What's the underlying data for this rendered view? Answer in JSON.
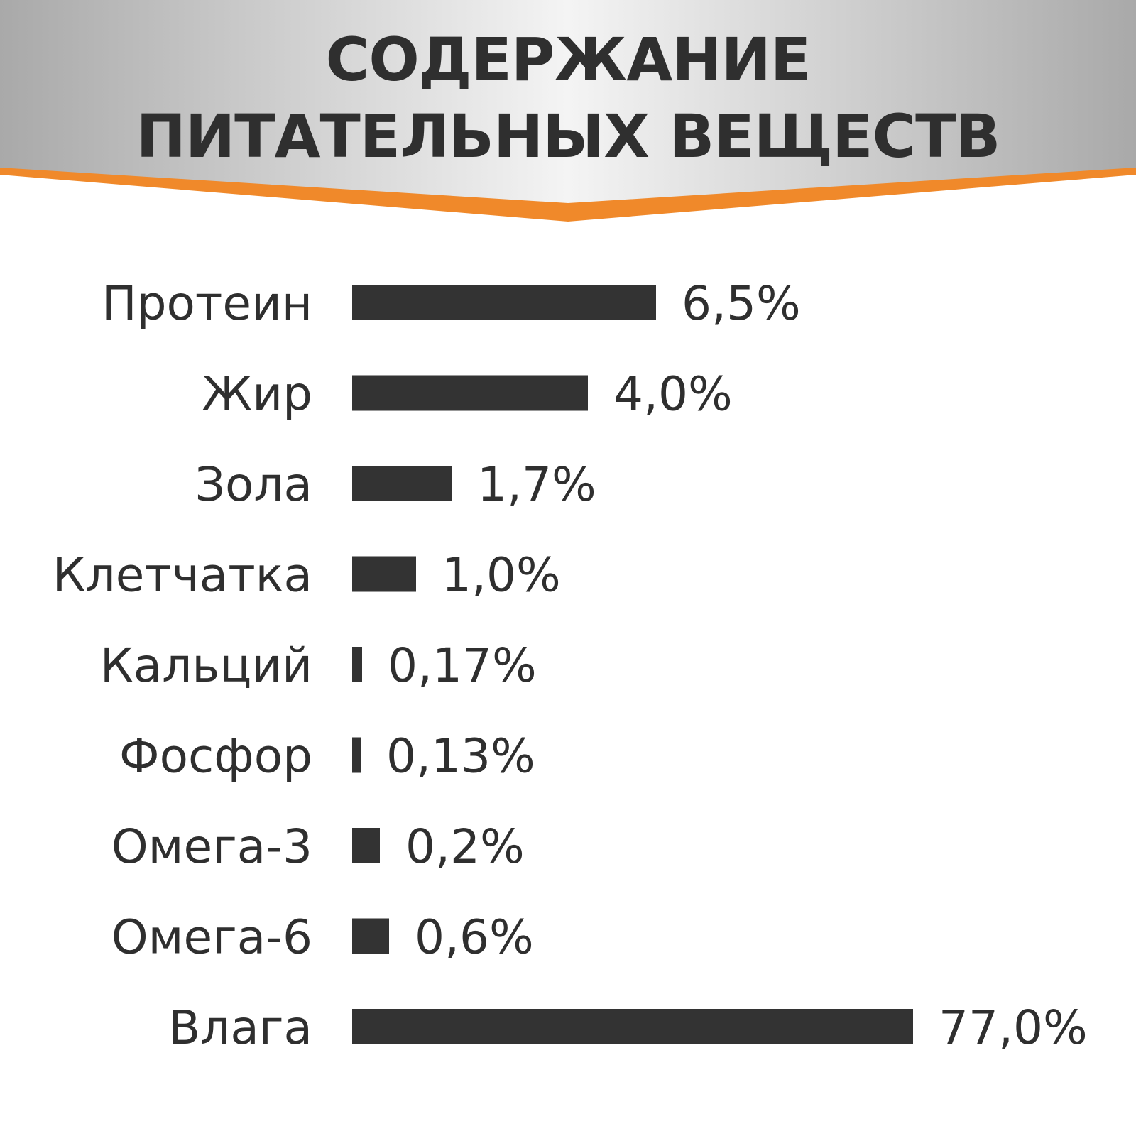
{
  "header": {
    "title_line_1": "СОДЕРЖАНИЕ",
    "title_line_2": "ПИТАТЕЛЬНЫХ ВЕЩЕСТВ"
  },
  "colors": {
    "bar": "#333333",
    "text": "#2f2f2f",
    "accent": "#f0892a",
    "header_light": "#f4f4f4",
    "header_dark": "#a9a9a9"
  },
  "chart_data": {
    "type": "bar",
    "orientation": "horizontal",
    "title": "СОДЕРЖАНИЕ ПИТАТЕЛЬНЫХ ВЕЩЕСТВ",
    "xlabel": "",
    "ylabel": "",
    "grid": false,
    "categories": [
      "Протеин",
      "Жир",
      "Зола",
      "Клетчатка",
      "Кальций",
      "Фосфор",
      "Омега-3",
      "Омега-6",
      "Влага"
    ],
    "values": [
      6.5,
      4.0,
      1.7,
      1.0,
      0.17,
      0.13,
      0.2,
      0.6,
      77.0
    ],
    "value_labels": [
      "6,5%",
      "4,0%",
      "1,7%",
      "1,0%",
      "0,17%",
      "0,13%",
      "0,2%",
      "0,6%",
      "77,0%"
    ]
  }
}
